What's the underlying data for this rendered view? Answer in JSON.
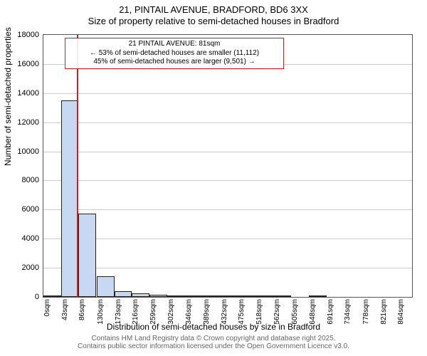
{
  "titles": {
    "line1": "21, PINTAIL AVENUE, BRADFORD, BD6 3XX",
    "line2": "Size of property relative to semi-detached houses in Bradford"
  },
  "axes": {
    "ylabel": "Number of semi-detached properties",
    "xlabel": "Distribution of semi-detached houses by size in Bradford",
    "ylim": [
      0,
      18000
    ],
    "ytick_step": 2000,
    "xlim": [
      0,
      900
    ],
    "xticks": [
      0,
      43,
      86,
      130,
      173,
      216,
      259,
      302,
      346,
      389,
      432,
      475,
      518,
      562,
      605,
      648,
      691,
      734,
      778,
      821,
      864
    ],
    "xtick_unit": "sqm",
    "grid_color": "#cccccc",
    "border_color": "#555555",
    "tick_fontsize": 11,
    "xtick_fontsize": 10,
    "label_fontsize": 12
  },
  "chart": {
    "type": "histogram",
    "bar_fill": "#c8d8f2",
    "bar_border": "#222222",
    "bin_width": 43,
    "bins": [
      {
        "start": 0,
        "count": 20
      },
      {
        "start": 43,
        "count": 13500
      },
      {
        "start": 86,
        "count": 5700
      },
      {
        "start": 130,
        "count": 1400
      },
      {
        "start": 173,
        "count": 400
      },
      {
        "start": 216,
        "count": 250
      },
      {
        "start": 259,
        "count": 150
      },
      {
        "start": 302,
        "count": 60
      },
      {
        "start": 346,
        "count": 40
      },
      {
        "start": 389,
        "count": 20
      },
      {
        "start": 432,
        "count": 10
      },
      {
        "start": 475,
        "count": 10
      },
      {
        "start": 518,
        "count": 5
      },
      {
        "start": 562,
        "count": 5
      },
      {
        "start": 605,
        "count": 0
      },
      {
        "start": 648,
        "count": 5
      },
      {
        "start": 691,
        "count": 0
      },
      {
        "start": 734,
        "count": 0
      },
      {
        "start": 778,
        "count": 0
      },
      {
        "start": 821,
        "count": 0
      }
    ]
  },
  "marker": {
    "x": 81,
    "color": "#d11a1a"
  },
  "annotation": {
    "border_color": "#d11a1a",
    "lines": [
      "21 PINTAIL AVENUE: 81sqm",
      "← 53% of semi-detached houses are smaller (11,112)",
      "45% of semi-detached houses are larger (9,501) →"
    ]
  },
  "footer": {
    "line1": "Contains HM Land Registry data © Crown copyright and database right 2025.",
    "line2": "Contains public sector information licensed under the Open Government Licence v3.0."
  },
  "colors": {
    "background": "#ffffff",
    "text": "#000000",
    "footer_text": "#666666"
  }
}
